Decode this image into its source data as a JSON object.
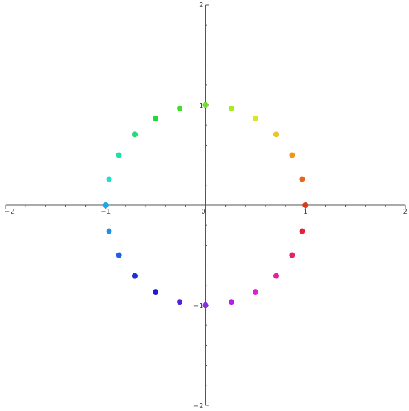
{
  "chart_data": {
    "type": "scatter",
    "title": "",
    "xlabel": "",
    "ylabel": "",
    "xlim": [
      -2,
      2
    ],
    "ylim": [
      -2,
      2
    ],
    "grid": false,
    "x_ticks": [
      -2,
      -1,
      0,
      1,
      2
    ],
    "y_ticks": [
      -2,
      -1,
      1,
      2
    ],
    "x_tick_labels": [
      "−2",
      "−1",
      "0",
      "1",
      "2"
    ],
    "y_tick_labels": [
      "−2",
      "−1",
      "1",
      "2"
    ],
    "points": [
      {
        "x": 1.0,
        "y": 0.0,
        "color": "#d93a1e"
      },
      {
        "x": 0.966,
        "y": 0.259,
        "color": "#e8661c"
      },
      {
        "x": 0.866,
        "y": 0.5,
        "color": "#f0941a"
      },
      {
        "x": 0.707,
        "y": 0.707,
        "color": "#f0c419"
      },
      {
        "x": 0.5,
        "y": 0.866,
        "color": "#d8e81c"
      },
      {
        "x": 0.259,
        "y": 0.966,
        "color": "#a6ec21"
      },
      {
        "x": 0.0,
        "y": 1.0,
        "color": "#6ee02a"
      },
      {
        "x": -0.259,
        "y": 0.966,
        "color": "#3fe02a"
      },
      {
        "x": -0.5,
        "y": 0.866,
        "color": "#22d93a"
      },
      {
        "x": -0.707,
        "y": 0.707,
        "color": "#1ee07a"
      },
      {
        "x": -0.866,
        "y": 0.5,
        "color": "#1ee0a6"
      },
      {
        "x": -0.966,
        "y": 0.259,
        "color": "#1ee0d2"
      },
      {
        "x": -1.0,
        "y": 0.0,
        "color": "#1ea6e8"
      },
      {
        "x": -0.966,
        "y": -0.259,
        "color": "#1e8ee8"
      },
      {
        "x": -0.866,
        "y": -0.5,
        "color": "#1e5ee8"
      },
      {
        "x": -0.707,
        "y": -0.707,
        "color": "#1e2ed8"
      },
      {
        "x": -0.5,
        "y": -0.866,
        "color": "#1e1ed0"
      },
      {
        "x": -0.259,
        "y": -0.966,
        "color": "#521ee0"
      },
      {
        "x": 0.0,
        "y": -1.0,
        "color": "#8a2ee0"
      },
      {
        "x": 0.259,
        "y": -0.966,
        "color": "#b41ee8"
      },
      {
        "x": 0.5,
        "y": -0.866,
        "color": "#e01ed8"
      },
      {
        "x": 0.707,
        "y": -0.707,
        "color": "#e81ea0"
      },
      {
        "x": 0.866,
        "y": -0.5,
        "color": "#e81e6e"
      },
      {
        "x": 0.966,
        "y": -0.259,
        "color": "#e81e3e"
      }
    ]
  }
}
